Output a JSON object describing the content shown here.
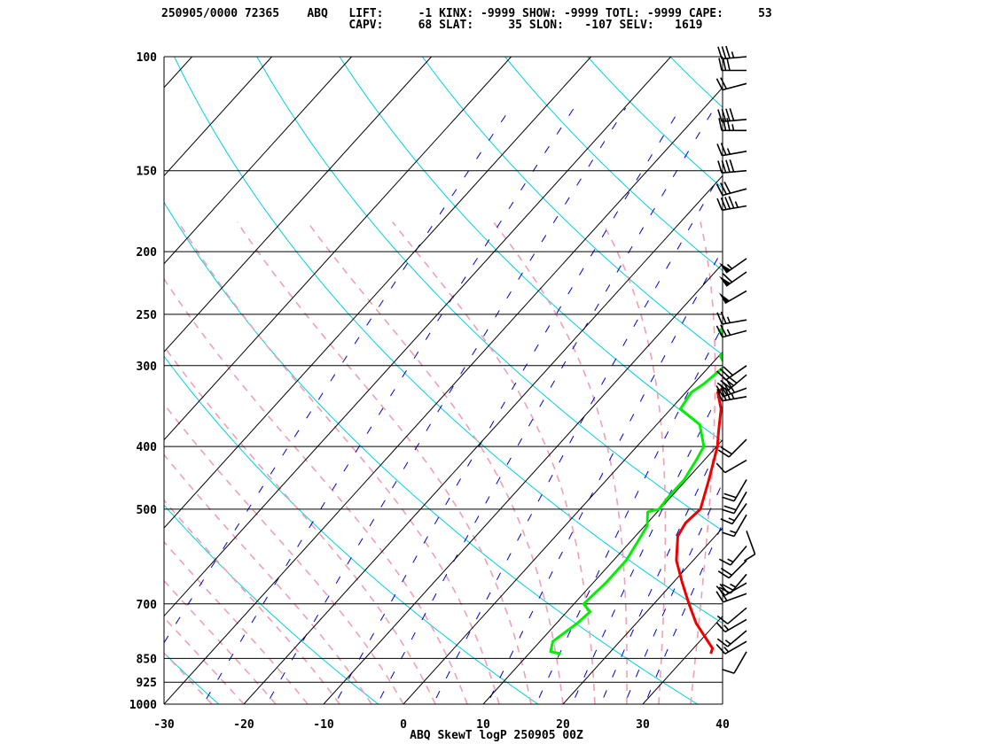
{
  "header": {
    "line1": "250905/0000 72365    ABQ   LIFT:     -1 KINX: -9999 SHOW: -9999 TOTL: -9999 CAPE:     53",
    "line2": "                           CAPV:     68 SLAT:     35 SLON:   -107 SELV:   1619"
  },
  "colors": {
    "temperature": "#ee0000",
    "dewpoint": "#00ee00",
    "isotherm": "#000000",
    "dry_adiabat": "#00d0e0",
    "moist_adiabat": "#f0a0b0",
    "mixing_ratio": "#0000cc",
    "wind_barb": "#000000"
  },
  "chart_data": {
    "type": "line",
    "title": "ABQ SkewT logP 250905 00Z",
    "x_ticks": [
      -30,
      -20,
      -10,
      0,
      10,
      20,
      30,
      40
    ],
    "xlim": [
      -30,
      40
    ],
    "y_ticks": [
      100,
      150,
      200,
      250,
      300,
      400,
      500,
      700,
      850,
      925,
      1000
    ],
    "ylim": [
      1000,
      100
    ],
    "y_scale": "log",
    "grid": true,
    "series": [
      {
        "key": "temperature",
        "points": [
          [
            836,
            32.8
          ],
          [
            820,
            32.4
          ],
          [
            750,
            27.5
          ],
          [
            700,
            24.4
          ],
          [
            650,
            21.2
          ],
          [
            600,
            17.9
          ],
          [
            550,
            15.3
          ],
          [
            525,
            14.8
          ],
          [
            500,
            15.1
          ],
          [
            480,
            14.2
          ],
          [
            450,
            12.8
          ],
          [
            400,
            10.1
          ],
          [
            380,
            8.6
          ],
          [
            350,
            6.3
          ],
          [
            330,
            4.0
          ],
          [
            320,
            4.3
          ],
          [
            300,
            3.1
          ],
          [
            280,
            1.2
          ],
          [
            260,
            -0.8
          ],
          [
            250,
            -1.5
          ],
          [
            230,
            -2.8
          ],
          [
            215,
            -3.9
          ],
          [
            200,
            -4.6
          ],
          [
            185,
            -6.2
          ],
          [
            170,
            -7.2
          ],
          [
            155,
            -7.5
          ],
          [
            145,
            -7.4
          ],
          [
            135,
            -5.1
          ],
          [
            125,
            -3.2
          ],
          [
            115,
            -2.6
          ],
          [
            105,
            -2.4
          ],
          [
            100,
            -1.3
          ]
        ]
      },
      {
        "key": "dewpoint",
        "points": [
          [
            836,
            14.0
          ],
          [
            830,
            12.5
          ],
          [
            800,
            11.6
          ],
          [
            750,
            12.6
          ],
          [
            720,
            12.9
          ],
          [
            700,
            11.2
          ],
          [
            650,
            11.6
          ],
          [
            600,
            11.6
          ],
          [
            560,
            10.9
          ],
          [
            530,
            10.3
          ],
          [
            515,
            9.4
          ],
          [
            505,
            8.8
          ],
          [
            500,
            9.9
          ],
          [
            480,
            9.7
          ],
          [
            450,
            9.7
          ],
          [
            420,
            9.0
          ],
          [
            400,
            8.4
          ],
          [
            370,
            5.4
          ],
          [
            350,
            1.2
          ],
          [
            330,
            0.7
          ],
          [
            320,
            1.3
          ],
          [
            300,
            1.9
          ],
          [
            290,
            0.2
          ],
          [
            280,
            0.1
          ],
          [
            265,
            -2.8
          ],
          [
            250,
            -1.6
          ],
          [
            235,
            -1.8
          ],
          [
            225,
            -2.1
          ],
          [
            210,
            -2.7
          ],
          [
            200,
            -3.3
          ],
          [
            190,
            -3.9
          ],
          [
            180,
            -4.5
          ],
          [
            170,
            -4.6
          ],
          [
            150,
            -5.0
          ],
          [
            140,
            -3.2
          ],
          [
            130,
            -4.9
          ],
          [
            120,
            -4.8
          ],
          [
            110,
            -4.6
          ],
          [
            103,
            -3.6
          ],
          [
            100,
            -3.3
          ]
        ]
      }
    ],
    "wind_barbs": [
      {
        "p": 100,
        "dir": 265,
        "spd": 35
      },
      {
        "p": 105,
        "dir": 270,
        "spd": 30
      },
      {
        "p": 110,
        "dir": 255,
        "spd": 20
      },
      {
        "p": 125,
        "dir": 265,
        "spd": 40
      },
      {
        "p": 130,
        "dir": 270,
        "spd": 35
      },
      {
        "p": 140,
        "dir": 260,
        "spd": 25
      },
      {
        "p": 150,
        "dir": 265,
        "spd": 40
      },
      {
        "p": 160,
        "dir": 255,
        "spd": 30
      },
      {
        "p": 170,
        "dir": 260,
        "spd": 45
      },
      {
        "p": 205,
        "dir": 235,
        "spd": 55
      },
      {
        "p": 215,
        "dir": 235,
        "spd": 60
      },
      {
        "p": 230,
        "dir": 240,
        "spd": 50
      },
      {
        "p": 255,
        "dir": 260,
        "spd": 25
      },
      {
        "p": 265,
        "dir": 255,
        "spd": 25
      },
      {
        "p": 300,
        "dir": 235,
        "spd": 30
      },
      {
        "p": 310,
        "dir": 230,
        "spd": 40
      },
      {
        "p": 325,
        "dir": 250,
        "spd": 40
      },
      {
        "p": 335,
        "dir": 260,
        "spd": 35
      },
      {
        "p": 390,
        "dir": 225,
        "spd": 20
      },
      {
        "p": 420,
        "dir": 240,
        "spd": 10
      },
      {
        "p": 450,
        "dir": 210,
        "spd": 20
      },
      {
        "p": 470,
        "dir": 210,
        "spd": 20
      },
      {
        "p": 490,
        "dir": 215,
        "spd": 15
      },
      {
        "p": 510,
        "dir": 210,
        "spd": 15
      },
      {
        "p": 540,
        "dir": 160,
        "spd": 10
      },
      {
        "p": 570,
        "dir": 220,
        "spd": 15
      },
      {
        "p": 600,
        "dir": 225,
        "spd": 20
      },
      {
        "p": 630,
        "dir": 220,
        "spd": 25
      },
      {
        "p": 650,
        "dir": 240,
        "spd": 20
      },
      {
        "p": 675,
        "dir": 250,
        "spd": 20
      },
      {
        "p": 710,
        "dir": 230,
        "spd": 10
      },
      {
        "p": 740,
        "dir": 240,
        "spd": 15
      },
      {
        "p": 770,
        "dir": 230,
        "spd": 15
      },
      {
        "p": 800,
        "dir": 240,
        "spd": 15
      },
      {
        "p": 830,
        "dir": 210,
        "spd": 10
      }
    ]
  }
}
